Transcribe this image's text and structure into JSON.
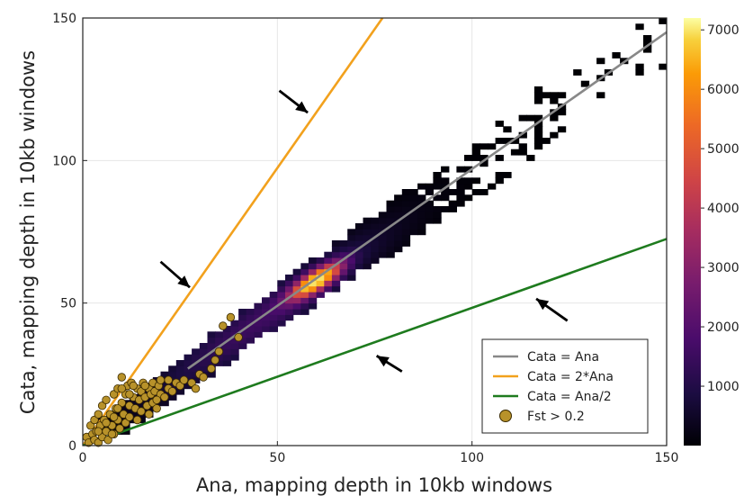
{
  "chart_data": {
    "type": "heatmap",
    "xlabel": "Ana, mapping depth in 10kb windows",
    "ylabel": "Cata, mapping depth in 10kb windows",
    "xlim": [
      0,
      150
    ],
    "ylim": [
      0,
      150
    ],
    "x_ticks": [
      "0",
      "50",
      "100",
      "150"
    ],
    "y_ticks": [
      "0",
      "50",
      "100",
      "150"
    ],
    "grid": true,
    "legend_position": "bottom-right",
    "colorbar": {
      "colormap": "inferno",
      "range": [
        0,
        7200
      ],
      "ticks": [
        "1000",
        "2000",
        "3000",
        "4000",
        "5000",
        "6000",
        "7000"
      ]
    },
    "density": {
      "center": [
        58,
        56
      ],
      "peak": 7000
    },
    "series": [
      {
        "name": "Cata = Ana",
        "type": "line",
        "color": "#888888",
        "x": [
          27,
          150
        ],
        "y": [
          27,
          145
        ]
      },
      {
        "name": "Cata = 2*Ana",
        "type": "line",
        "color": "#f2a11d",
        "x": [
          0,
          77
        ],
        "y": [
          0,
          150
        ]
      },
      {
        "name": "Cata = Ana/2",
        "type": "line",
        "color": "#1e7b1e",
        "x": [
          0,
          150
        ],
        "y": [
          0,
          72.5
        ]
      },
      {
        "name": "Fst > 0.2",
        "type": "scatter",
        "color": "#b8922a",
        "points": [
          [
            1,
            3
          ],
          [
            1.5,
            1
          ],
          [
            2,
            7
          ],
          [
            2.5,
            4
          ],
          [
            3,
            2
          ],
          [
            3,
            9
          ],
          [
            3.5,
            5
          ],
          [
            4,
            1
          ],
          [
            4,
            11
          ],
          [
            4.5,
            7
          ],
          [
            5,
            3
          ],
          [
            5,
            14
          ],
          [
            5.5,
            9
          ],
          [
            6,
            5
          ],
          [
            6,
            16
          ],
          [
            6.5,
            2
          ],
          [
            7,
            11
          ],
          [
            7.5,
            7
          ],
          [
            8,
            4
          ],
          [
            8,
            18
          ],
          [
            8.5,
            13
          ],
          [
            9,
            9
          ],
          [
            9,
            20
          ],
          [
            9.5,
            6
          ],
          [
            10,
            15
          ],
          [
            10,
            24
          ],
          [
            10.5,
            11
          ],
          [
            11,
            18
          ],
          [
            11,
            8
          ],
          [
            11.5,
            21
          ],
          [
            12,
            14
          ],
          [
            12,
            10
          ],
          [
            12.5,
            22
          ],
          [
            13,
            17
          ],
          [
            13.5,
            13
          ],
          [
            14,
            20
          ],
          [
            14,
            9
          ],
          [
            14.5,
            16
          ],
          [
            15,
            19
          ],
          [
            15,
            12
          ],
          [
            15.5,
            22
          ],
          [
            16,
            17
          ],
          [
            16.5,
            14
          ],
          [
            17,
            20
          ],
          [
            17,
            11
          ],
          [
            17.5,
            18
          ],
          [
            18,
            22
          ],
          [
            18,
            15
          ],
          [
            18.5,
            19
          ],
          [
            19,
            13
          ],
          [
            19.5,
            21
          ],
          [
            20,
            18
          ],
          [
            20,
            23
          ],
          [
            21,
            17
          ],
          [
            22,
            20
          ],
          [
            22,
            23
          ],
          [
            23,
            19
          ],
          [
            24,
            22
          ],
          [
            25,
            21
          ],
          [
            26,
            23
          ],
          [
            28,
            22
          ],
          [
            29,
            20
          ],
          [
            30,
            25
          ],
          [
            31,
            24
          ],
          [
            33,
            27
          ],
          [
            34,
            30
          ],
          [
            35,
            33
          ],
          [
            36,
            42
          ],
          [
            38,
            45
          ],
          [
            40,
            38
          ],
          [
            7.5,
            4
          ],
          [
            6,
            8
          ],
          [
            4,
            5
          ],
          [
            9,
            13
          ],
          [
            12,
            18
          ],
          [
            10,
            20
          ],
          [
            8,
            10
          ],
          [
            13,
            21
          ],
          [
            16,
            21
          ],
          [
            19,
            16
          ]
        ]
      },
      {
        "name": "",
        "type": "arrows",
        "color": "#000000",
        "items": [
          {
            "from": [
              50.5,
              124.5
            ],
            "to": [
              57.8,
              116.8
            ]
          },
          {
            "from": [
              20.0,
              64.5
            ],
            "to": [
              27.5,
              55.5
            ]
          },
          {
            "from": [
              82.0,
              26.0
            ],
            "to": [
              75.5,
              31.5
            ]
          },
          {
            "from": [
              124.5,
              43.8
            ],
            "to": [
              116.5,
              51.5
            ]
          }
        ]
      }
    ]
  }
}
